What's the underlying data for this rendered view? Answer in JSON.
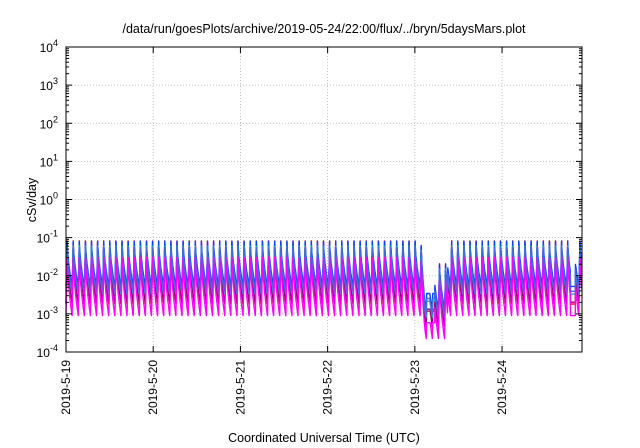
{
  "chart_data": {
    "type": "line",
    "title": "/data/run/goesPlots/archive/2019-05-24/22:00/flux/../bryn/5daysMars.plot",
    "xlabel": "Coordinated Universal Time (UTC)",
    "ylabel": "cSv/day",
    "yscale": "log",
    "ylim": [
      0.0001,
      10000
    ],
    "xlim": [
      "2019-05-19 00:00",
      "2019-05-24 22:00"
    ],
    "grid": true,
    "x_ticks": [
      "2019-5-19",
      "2019-5-20",
      "2019-5-21",
      "2019-5-22",
      "2019-5-23",
      "2019-5-24"
    ],
    "y_ticks": [
      {
        "value": 0.0001,
        "base": "10",
        "exp": "-4"
      },
      {
        "value": 0.001,
        "base": "10",
        "exp": "-3"
      },
      {
        "value": 0.01,
        "base": "10",
        "exp": "-2"
      },
      {
        "value": 0.1,
        "base": "10",
        "exp": "-1"
      },
      {
        "value": 1,
        "base": "10",
        "exp": "0"
      },
      {
        "value": 10,
        "base": "10",
        "exp": "1"
      },
      {
        "value": 100,
        "base": "10",
        "exp": "2"
      },
      {
        "value": 1000,
        "base": "10",
        "exp": "3"
      },
      {
        "value": 10000,
        "base": "10",
        "exp": "4"
      }
    ],
    "pattern": {
      "sawtooth_period_hours": 1.68,
      "peak_value": 0.09,
      "trough_value": 0.0015,
      "dip_start": "2019-05-23 01:30",
      "dip_end": "2019-05-23 09:00",
      "dip_min_value": 0.0007,
      "late_dip_time": "2019-05-24 19:30",
      "late_dip_value": 0.0015
    },
    "series": [
      {
        "color": "#ff0000",
        "peak_factor": 1.55,
        "trough_factor": 1.2
      },
      {
        "color": "#8b0080",
        "peak_factor": 1.1,
        "trough_factor": 1.35
      },
      {
        "color": "#0040ff",
        "peak_factor": 1.3,
        "trough_factor": 3.5
      },
      {
        "color": "#20b2aa",
        "peak_factor": 1.0,
        "trough_factor": 2.2
      },
      {
        "color": "#4169e1",
        "peak_factor": 0.9,
        "trough_factor": 2.6
      },
      {
        "color": "#ff00ff",
        "peak_factor": 0.55,
        "trough_factor": 0.6
      }
    ]
  }
}
